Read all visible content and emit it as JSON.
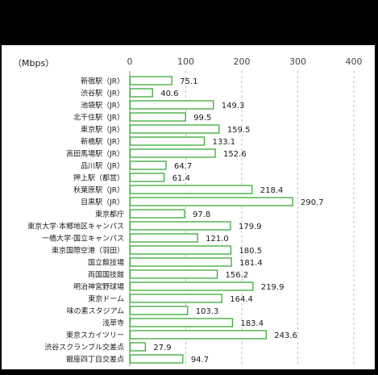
{
  "chart_data": {
    "type": "bar",
    "orientation": "horizontal",
    "unit": "（Mbps）",
    "xlim": [
      0,
      400
    ],
    "x_ticks": [
      "0",
      "100",
      "200",
      "300",
      "400"
    ],
    "grid": "vertical dashed",
    "categories": [
      "新宿駅（JR）",
      "渋谷駅（JR）",
      "池袋駅（JR）",
      "北千住駅（JR）",
      "東京駅（JR）",
      "新橋駅（JR）",
      "高田馬場駅（JR）",
      "品川駅（JR）",
      "押上駅（都営）",
      "秋葉原駅（JR）",
      "目黒駅（JR）",
      "東京都庁",
      "東京大学·本郷地区キャンパス",
      "一橋大学·国立キャンパス",
      "東京国際空港（羽田）",
      "国立競技場",
      "両国国技館",
      "明治神宮野球場",
      "東京ドーム",
      "味の素スタジアム",
      "浅草寺",
      "東京スカイツリー",
      "渋谷スクランブル交差点",
      "銀座四丁目交差点"
    ],
    "values": [
      75.1,
      40.6,
      149.3,
      99.5,
      159.5,
      133.1,
      152.6,
      64.7,
      61.4,
      218.4,
      290.7,
      97.8,
      179.9,
      121.0,
      180.5,
      181.4,
      156.2,
      219.9,
      164.4,
      103.3,
      183.4,
      243.6,
      27.9,
      94.7
    ],
    "value_labels": [
      "75.1",
      "40.6",
      "149.3",
      "99.5",
      "159.5",
      "133.1",
      "152.6",
      "64.7",
      "61.4",
      "218.4",
      "290.7",
      "97.8",
      "179.9",
      "121.0",
      "180.5",
      "181.4",
      "156.2",
      "219.9",
      "164.4",
      "103.3",
      "183.4",
      "243.6",
      "27.9",
      "94.7"
    ],
    "colors": {
      "bar_fill": "#ffffff",
      "bar_stroke": "#3aaa35",
      "grid": "#bfbfbf"
    }
  }
}
